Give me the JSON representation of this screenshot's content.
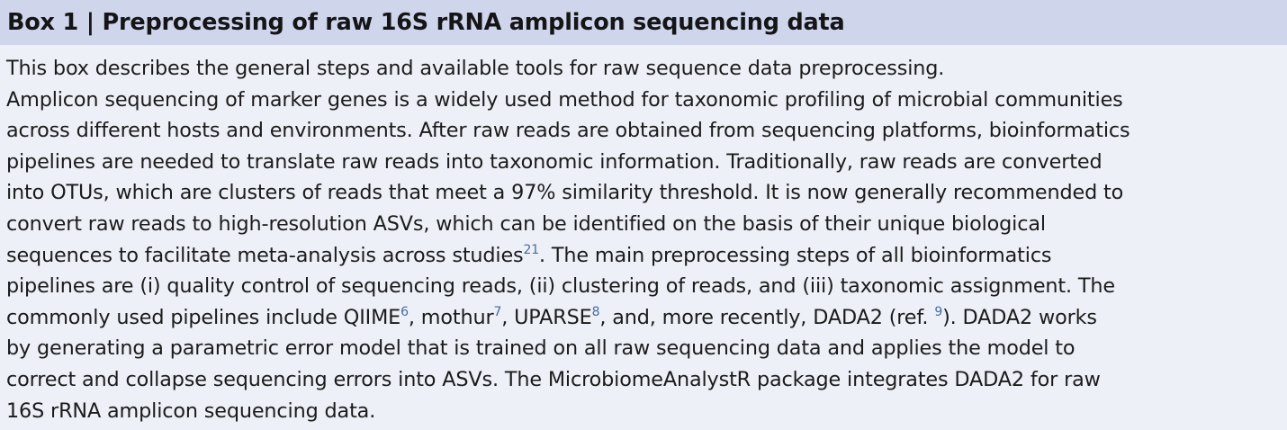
{
  "box": {
    "title": "Box 1 | Preprocessing of raw 16S rRNA amplicon sequencing data",
    "intro": "This box describes the general steps and available tools for raw sequence data preprocessing.",
    "lines": [
      "Amplicon sequencing of marker genes is a widely used method for taxonomic profiling of microbial communities",
      "across different hosts and environments. After raw reads are obtained from sequencing platforms, bioinformatics",
      "pipelines are needed to translate raw reads into taxonomic information. Traditionally, raw reads are converted",
      "into OTUs, which are clusters of reads that meet a 97% similarity threshold. It is now generally recommended to",
      "convert raw reads to high-resolution ASVs, which can be identified on the basis of their unique biological"
    ],
    "line7": {
      "a": "sequences to facilitate meta-analysis across studies",
      "ref": "21",
      "b": ". The main preprocessing steps of all bioinformatics"
    },
    "line8": "pipelines are (i) quality control of sequencing reads, (ii) clustering of reads, and (iii) taxonomic assignment. The",
    "line9": {
      "a": "commonly used pipelines include QIIME",
      "ref1": "6",
      "b": ", mothur",
      "ref2": "7",
      "c": ", UPARSE",
      "ref3": "8",
      "d": ", and, more recently, DADA2 (ref. ",
      "ref4": "9",
      "e": "). DADA2 works"
    },
    "line10": "by generating a parametric error model that is trained on all raw sequencing data and applies the model to",
    "line11": "correct and collapse sequencing errors into ASVs. The MicrobiomeAnalystR package integrates DADA2 for raw",
    "line12": "16S rRNA amplicon sequencing data."
  }
}
